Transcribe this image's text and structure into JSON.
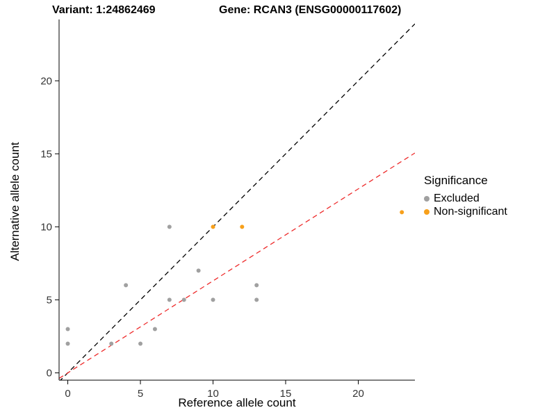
{
  "chart_data": {
    "type": "scatter",
    "titles": [
      "Variant: 1:24862469",
      "Gene: RCAN3 (ENSG00000117602)"
    ],
    "xlabel": "Reference allele count",
    "ylabel": "Alternative allele count",
    "xlim": [
      -0.6,
      23.9
    ],
    "ylim": [
      -0.5,
      24.2
    ],
    "x_ticks": [
      0,
      5,
      10,
      15,
      20
    ],
    "y_ticks": [
      0,
      5,
      10,
      15,
      20
    ],
    "grid": false,
    "legend": {
      "title": "Significance",
      "position": "right",
      "items": [
        {
          "label": "Excluded",
          "color": "#A0A0A0"
        },
        {
          "label": "Non-significant",
          "color": "#F7A01B"
        }
      ]
    },
    "series": [
      {
        "name": "Excluded",
        "color": "#A0A0A0",
        "points": [
          [
            0,
            2
          ],
          [
            0,
            3
          ],
          [
            3,
            2
          ],
          [
            4,
            6
          ],
          [
            5,
            2
          ],
          [
            6,
            3
          ],
          [
            7,
            5
          ],
          [
            7,
            10
          ],
          [
            8,
            5
          ],
          [
            9,
            7
          ],
          [
            10,
            5
          ],
          [
            13,
            5
          ],
          [
            13,
            6
          ]
        ]
      },
      {
        "name": "Non-significant",
        "color": "#F7A01B",
        "points": [
          [
            10,
            10
          ],
          [
            12,
            10
          ],
          [
            23,
            11
          ]
        ]
      }
    ],
    "ref_lines": [
      {
        "name": "identity-line",
        "slope": 1,
        "intercept": 0,
        "color": "#000000",
        "style": "dashed"
      },
      {
        "name": "expected-ratio-line",
        "slope": 0.63,
        "intercept": 0,
        "color": "#EE2B2B",
        "style": "dashed"
      }
    ]
  }
}
